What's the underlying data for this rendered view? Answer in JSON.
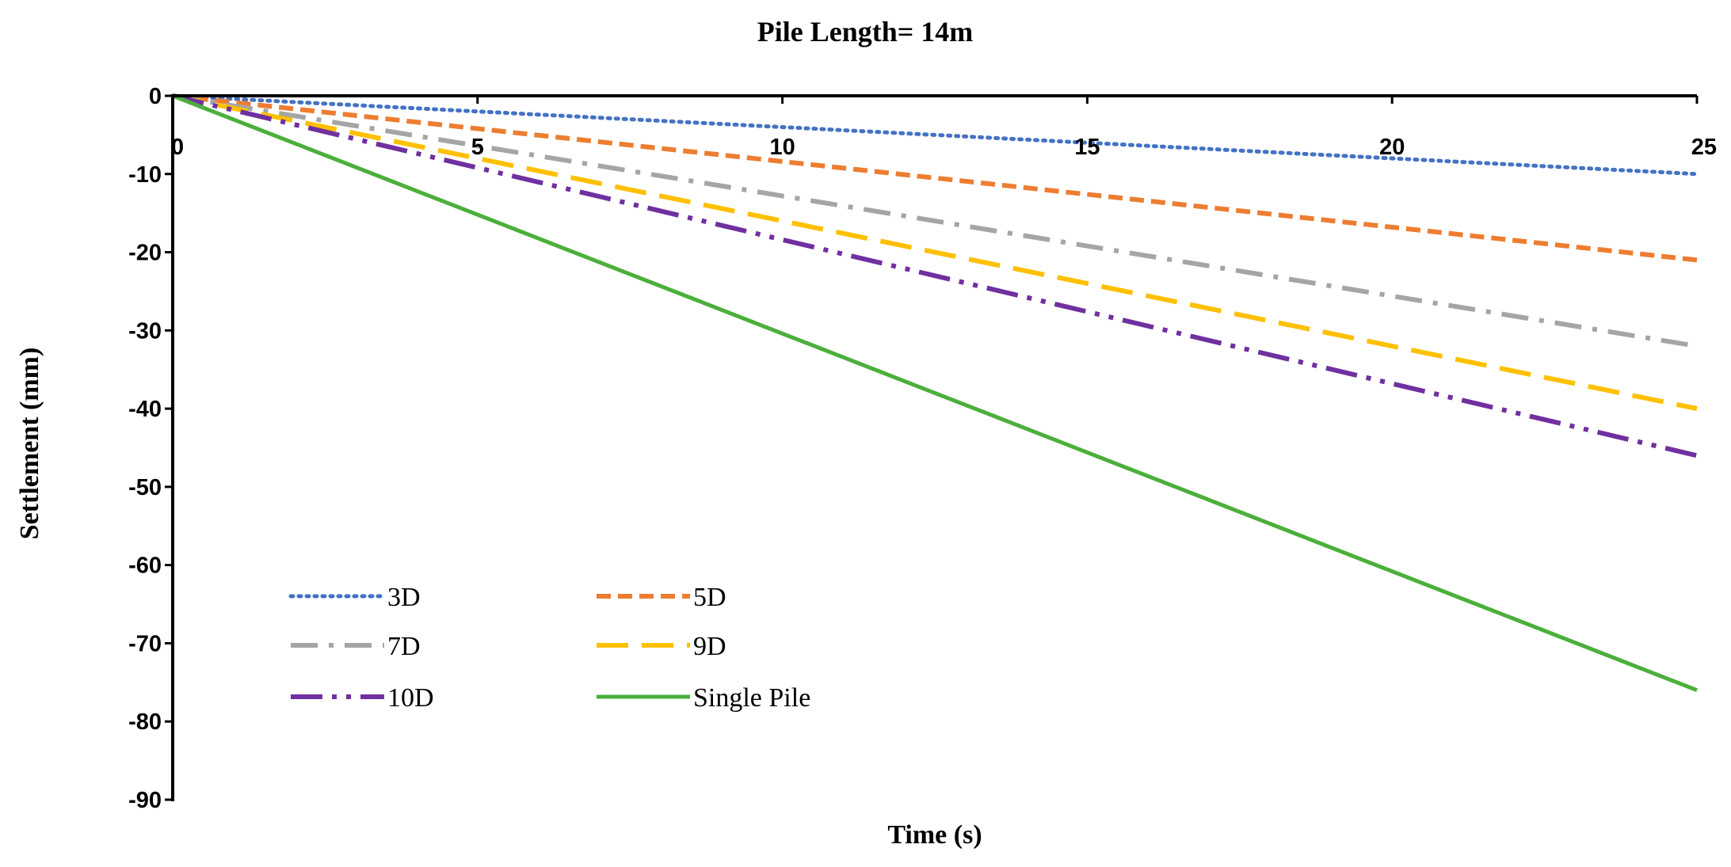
{
  "chart_data": {
    "type": "line",
    "title": "Pile Length= 14m",
    "xlabel": "Time (s)",
    "ylabel": "Settlement (mm)",
    "xlim": [
      0,
      25
    ],
    "ylim": [
      -90,
      0
    ],
    "xticks": [
      "0",
      "5",
      "10",
      "15",
      "20",
      "25"
    ],
    "yticks": [
      "0",
      "-10",
      "-20",
      "-30",
      "-40",
      "-50",
      "-60",
      "-70",
      "-80",
      "-90"
    ],
    "grid": false,
    "legend_position": "lower-left",
    "series": [
      {
        "name": "3D",
        "color": "#4472C4",
        "style": "dotted",
        "x": [
          0,
          25
        ],
        "y": [
          0,
          -10
        ]
      },
      {
        "name": "5D",
        "color": "#ED7D31",
        "style": "dashed",
        "x": [
          0,
          25
        ],
        "y": [
          0,
          -21
        ]
      },
      {
        "name": "7D",
        "color": "#A5A5A5",
        "style": "dash-dot",
        "x": [
          0,
          25
        ],
        "y": [
          0,
          -32
        ]
      },
      {
        "name": "9D",
        "color": "#FFC000",
        "style": "long-dash",
        "x": [
          0,
          25
        ],
        "y": [
          0,
          -40
        ]
      },
      {
        "name": "10D",
        "color": "#7030A0",
        "style": "long-dash-dot-dot",
        "x": [
          0,
          25
        ],
        "y": [
          0,
          -46
        ]
      },
      {
        "name": "Single Pile",
        "color": "#4CAF3C",
        "style": "solid",
        "x": [
          0,
          25
        ],
        "y": [
          0,
          -76
        ]
      }
    ]
  }
}
